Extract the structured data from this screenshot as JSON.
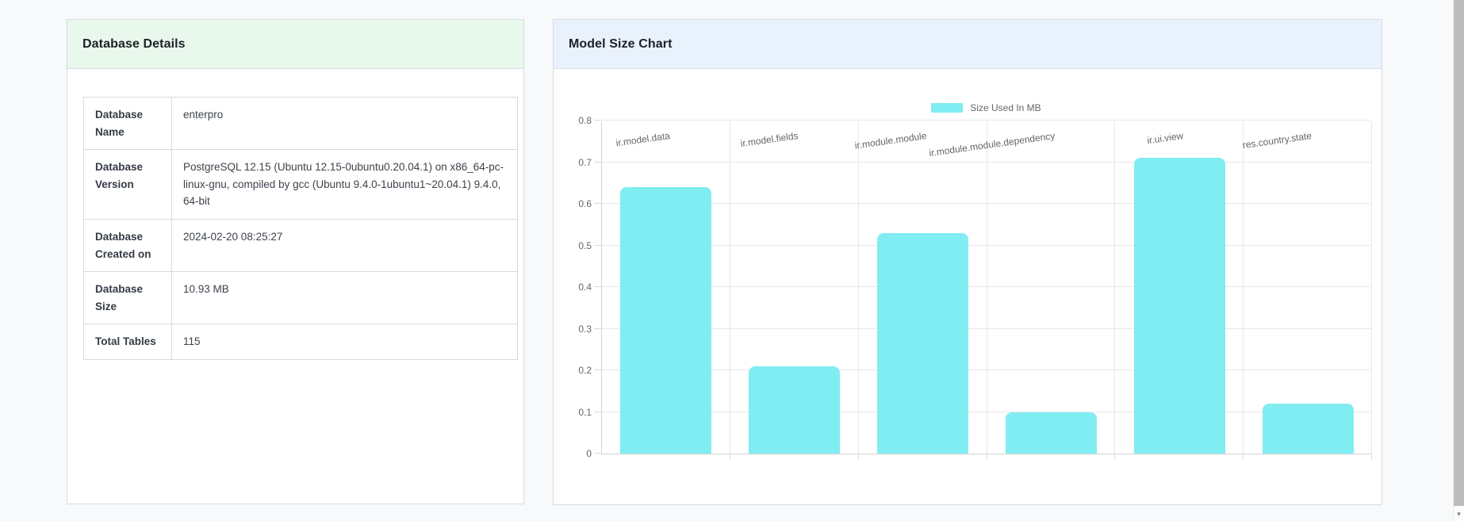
{
  "left_panel": {
    "title": "Database Details",
    "rows": [
      {
        "label": "Database Name",
        "value": "enterpro"
      },
      {
        "label": "Database Version",
        "value": "PostgreSQL 12.15 (Ubuntu 12.15-0ubuntu0.20.04.1) on x86_64-pc-linux-gnu, compiled by gcc (Ubuntu 9.4.0-1ubuntu1~20.04.1) 9.4.0, 64-bit"
      },
      {
        "label": "Database Created on",
        "value": "2024-02-20 08:25:27"
      },
      {
        "label": "Database Size",
        "value": "10.93 MB"
      },
      {
        "label": "Total Tables",
        "value": "115"
      }
    ]
  },
  "right_panel": {
    "title": "Model Size Chart",
    "legend_label": "Size Used In MB"
  },
  "chart_data": {
    "type": "bar",
    "title": "Model Size Chart",
    "categories": [
      "ir.model.data",
      "ir.model.fields",
      "ir.module.module",
      "ir.module.module.dependency",
      "ir.ui.view",
      "res.country.state"
    ],
    "series": [
      {
        "name": "Size Used In MB",
        "values": [
          0.64,
          0.21,
          0.53,
          0.1,
          0.71,
          0.12
        ]
      }
    ],
    "xlabel": "",
    "ylabel": "",
    "ylim": [
      0,
      0.8
    ],
    "ytick_step": 0.1,
    "grid": true,
    "legend_position": "top",
    "bar_color": "#80edf2"
  },
  "colors": {
    "left_header_bg": "#e9f8ec",
    "right_header_bg": "#e9f2fc",
    "bar": "#80edf2",
    "axis_text": "#666666",
    "page_bg": "#f8f9fb"
  },
  "scrollbar": {
    "down_arrow": "▾"
  }
}
